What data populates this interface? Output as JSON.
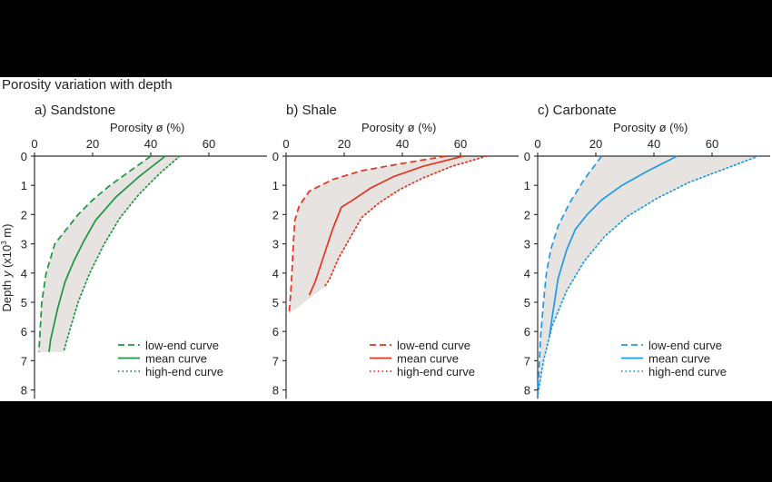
{
  "figure_title": "Porosity variation with depth",
  "y_axis_label_prefix": "Depth ",
  "y_axis_label_var": "y",
  "y_axis_label_mid": " (x10",
  "y_axis_label_sup": "3",
  "y_axis_label_suffix": " m)",
  "chart_data": [
    {
      "type": "line",
      "title": "a) Sandstone",
      "xlabel": "Porosity ø (%)",
      "ylabel": "Depth y (x10³ m)",
      "x_axis_position": "top",
      "y_inverted": true,
      "xlim": [
        0,
        80
      ],
      "ylim": [
        0,
        8.3
      ],
      "xticks": [
        0,
        20,
        40,
        60
      ],
      "yticks": [
        0,
        1,
        2,
        3,
        4,
        5,
        6,
        7,
        8
      ],
      "legend_position": "bottom-right",
      "color": "#1a9641",
      "fill_color": "#e6e3e0",
      "series": [
        {
          "name": "low-end curve",
          "style": "dashed",
          "x": [
            40,
            33,
            26,
            20,
            15,
            11,
            7,
            4,
            2.5,
            1.5
          ],
          "y": [
            0,
            0.5,
            1,
            1.5,
            2,
            2.5,
            3,
            4,
            5,
            6.7
          ]
        },
        {
          "name": "mean curve",
          "style": "solid",
          "x": [
            45,
            36,
            28,
            21,
            17,
            13.5,
            10.5,
            8,
            5.5,
            5
          ],
          "y": [
            0,
            0.7,
            1.4,
            2.2,
            2.9,
            3.6,
            4.3,
            5.2,
            6.3,
            6.7
          ]
        },
        {
          "name": "high-end curve",
          "style": "dotted",
          "x": [
            50,
            43,
            36,
            29.5,
            24,
            19,
            15,
            12,
            10
          ],
          "y": [
            0,
            0.6,
            1.3,
            2.1,
            3,
            4,
            5,
            6,
            6.7
          ]
        }
      ]
    },
    {
      "type": "line",
      "title": "b) Shale",
      "xlabel": "Porosity ø (%)",
      "ylabel": "Depth y (x10³ m)",
      "x_axis_position": "top",
      "y_inverted": true,
      "xlim": [
        0,
        80
      ],
      "ylim": [
        0,
        8.3
      ],
      "xticks": [
        0,
        20,
        40,
        60
      ],
      "yticks": [
        0,
        1,
        2,
        3,
        4,
        5,
        6,
        7,
        8
      ],
      "legend_position": "bottom-right",
      "color": "#e8321e",
      "fill_color": "#e6e3e0",
      "series": [
        {
          "name": "low-end curve",
          "style": "dashed",
          "x": [
            55,
            40,
            26,
            16,
            8,
            4.5,
            3,
            2.5,
            2,
            1.5,
            1
          ],
          "y": [
            0,
            0.25,
            0.5,
            0.8,
            1.2,
            1.7,
            2.2,
            3,
            4,
            4.8,
            5.4
          ]
        },
        {
          "name": "mean curve",
          "style": "solid",
          "x": [
            61,
            47,
            37,
            29,
            23,
            19,
            16,
            13,
            10,
            8
          ],
          "y": [
            0,
            0.35,
            0.7,
            1.1,
            1.5,
            1.75,
            2.5,
            3.4,
            4.3,
            4.75
          ]
        },
        {
          "name": "high-end curve",
          "style": "dotted",
          "x": [
            69,
            57,
            47,
            39,
            32,
            26,
            22,
            18,
            15,
            13
          ],
          "y": [
            0,
            0.35,
            0.75,
            1.15,
            1.6,
            2.1,
            2.8,
            3.5,
            4.2,
            4.5
          ]
        }
      ]
    },
    {
      "type": "line",
      "title": "c) Carbonate",
      "xlabel": "Porosity ø (%)",
      "ylabel": "Depth y (x10³ m)",
      "x_axis_position": "top",
      "y_inverted": true,
      "xlim": [
        0,
        80
      ],
      "ylim": [
        0,
        8.3
      ],
      "xticks": [
        0,
        20,
        40,
        60
      ],
      "yticks": [
        0,
        1,
        2,
        3,
        4,
        5,
        6,
        7,
        8
      ],
      "legend_position": "bottom-right",
      "color": "#1e9be8",
      "fill_color": "#e6e3e0",
      "series": [
        {
          "name": "low-end curve",
          "style": "dashed",
          "x": [
            22,
            16,
            11,
            7,
            4.5,
            3,
            2,
            1,
            0.5,
            0
          ],
          "y": [
            0,
            0.8,
            1.6,
            2.4,
            3.2,
            4,
            5,
            6.2,
            7.2,
            8.2
          ]
        },
        {
          "name": "mean curve",
          "style": "solid",
          "x": [
            48,
            38,
            29,
            22,
            17,
            13,
            10,
            7,
            5,
            4
          ],
          "y": [
            0,
            0.5,
            1,
            1.5,
            2,
            2.5,
            3.2,
            4.2,
            5.5,
            6.2
          ]
        },
        {
          "name": "high-end curve",
          "style": "dotted",
          "x": [
            76,
            64,
            52,
            41,
            31,
            23,
            16,
            10,
            5,
            2,
            0
          ],
          "y": [
            0,
            0.45,
            0.9,
            1.45,
            2.05,
            2.75,
            3.6,
            4.6,
            5.8,
            7,
            8.2
          ]
        }
      ]
    }
  ]
}
